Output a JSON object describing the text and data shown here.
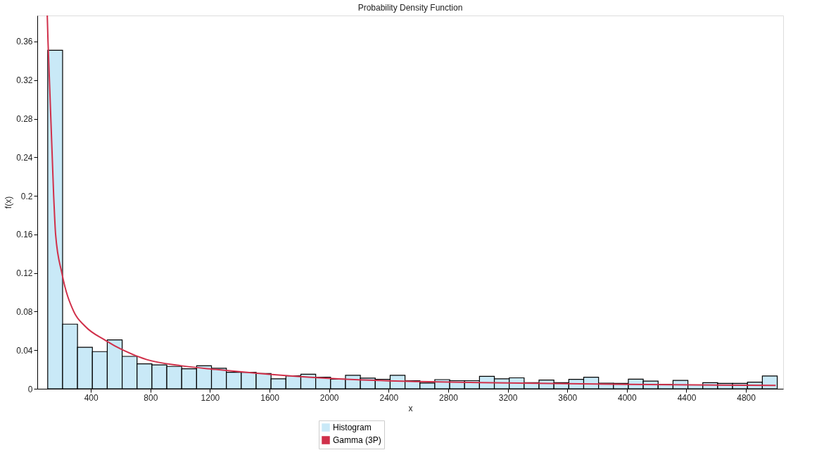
{
  "chart_data": {
    "type": "histogram",
    "title": "Probability Density Function",
    "xlabel": "x",
    "ylabel": "f(x)",
    "bins": [
      110,
      210,
      310,
      410,
      510,
      610,
      710,
      810,
      910,
      1010,
      1110,
      1210,
      1310,
      1410,
      1510,
      1610,
      1710,
      1810,
      1910,
      2010,
      2110,
      2210,
      2310,
      2410,
      2510,
      2610,
      2710,
      2810,
      2910,
      3010,
      3110,
      3210,
      3310,
      3410,
      3510,
      3610,
      3710,
      3810,
      3910,
      4010,
      4110,
      4210,
      4310,
      4410,
      4510,
      4610,
      4710,
      4810,
      4910,
      5010
    ],
    "series": [
      {
        "name": "Histogram",
        "color": "#c9e9f7",
        "values": [
          0.351,
          0.067,
          0.043,
          0.0385,
          0.0506,
          0.0336,
          0.0258,
          0.0248,
          0.0232,
          0.0207,
          0.0238,
          0.0212,
          0.017,
          0.017,
          0.0158,
          0.0103,
          0.0134,
          0.015,
          0.0119,
          0.01,
          0.0139,
          0.0111,
          0.0098,
          0.0139,
          0.0084,
          0.006,
          0.0095,
          0.0084,
          0.0084,
          0.0129,
          0.0103,
          0.0113,
          0.0063,
          0.009,
          0.0063,
          0.0098,
          0.0119,
          0.0058,
          0.0055,
          0.01,
          0.0079,
          0.0045,
          0.0087,
          0.004,
          0.0063,
          0.0055,
          0.0055,
          0.0069,
          0.0132
        ]
      },
      {
        "name": "Gamma (3P)",
        "type": "line",
        "color": "#d0304a",
        "x": [
          107,
          112,
          150,
          163,
          205,
          285,
          360,
          500,
          616,
          780,
          1000,
          1238,
          1600,
          2090,
          2600,
          3200,
          4000,
          5000
        ],
        "values": [
          0.387,
          0.36,
          0.2,
          0.16,
          0.12,
          0.08,
          0.065,
          0.05,
          0.04,
          0.03,
          0.024,
          0.02,
          0.015,
          0.01,
          0.0075,
          0.006,
          0.0045,
          0.0035
        ]
      }
    ],
    "xlim": [
      40,
      5050
    ],
    "xticks": [
      400,
      800,
      1200,
      1600,
      2000,
      2400,
      2800,
      3200,
      3600,
      4000,
      4400,
      4800
    ],
    "ylim": [
      0,
      0.387
    ],
    "yticks": [
      0,
      0.04,
      0.08,
      0.12,
      0.16,
      0.2,
      0.24,
      0.28,
      0.32,
      0.36
    ],
    "grid": false,
    "legend": "bottom"
  }
}
